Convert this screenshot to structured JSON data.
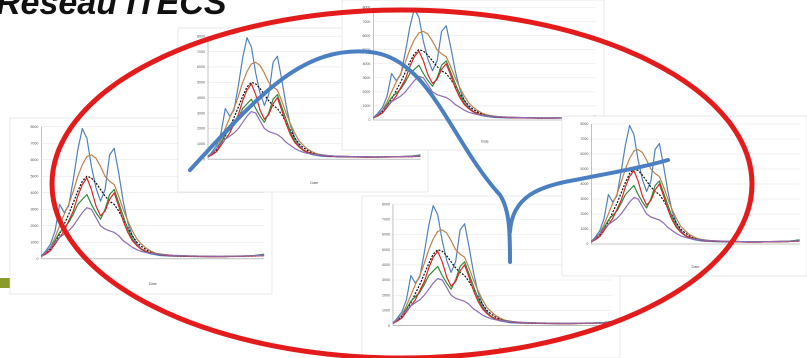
{
  "slide": {
    "heading": "Réseau ITECS",
    "colors": {
      "ellipse": "#e41b1b",
      "connector": "#4a7fc1",
      "accent_bar": "#8a9a2b"
    }
  },
  "chart_data": {
    "type": "line",
    "x": [
      1,
      2,
      3,
      4,
      5,
      6,
      7,
      8,
      9,
      10,
      11,
      12,
      13,
      14,
      15,
      16,
      17,
      18,
      19,
      20,
      21,
      22,
      23,
      24,
      25,
      26,
      27,
      28,
      29,
      30,
      31,
      32,
      33,
      34,
      35,
      36,
      37,
      38,
      39,
      40,
      41,
      42,
      43,
      44,
      45,
      46,
      47,
      48,
      49,
      50
    ],
    "xlabel": "Date",
    "ylabel": "",
    "ylim": [
      0,
      8000
    ],
    "yticks": [
      0,
      1000,
      2000,
      3000,
      4000,
      5000,
      6000,
      7000,
      8000
    ],
    "grid": true,
    "series": [
      {
        "color": "#4f81bd",
        "values": [
          150,
          500,
          900,
          1700,
          3300,
          2800,
          3200,
          4800,
          6600,
          7900,
          7300,
          5600,
          4300,
          3500,
          4200,
          6300,
          6700,
          5200,
          3500,
          2200,
          1400,
          900,
          600,
          400,
          300,
          250,
          200,
          180,
          170,
          160,
          150,
          150,
          150,
          140,
          140,
          140,
          130,
          130,
          130,
          130,
          140,
          140,
          150,
          150,
          160,
          170,
          180,
          200,
          240,
          280
        ]
      },
      {
        "color": "#c0804a",
        "values": [
          150,
          350,
          700,
          1300,
          2000,
          2700,
          3300,
          4100,
          5000,
          5700,
          6200,
          6300,
          6100,
          5600,
          5000,
          4700,
          4500,
          3800,
          3000,
          2300,
          1700,
          1200,
          900,
          650,
          480,
          360,
          300,
          260,
          230,
          210,
          200,
          190,
          180,
          170,
          170,
          160,
          160,
          160,
          150,
          150,
          150,
          160,
          160,
          170,
          170,
          180,
          190,
          200,
          210,
          230
        ]
      },
      {
        "color": "#111111",
        "dashed": true,
        "values": [
          150,
          300,
          600,
          1000,
          1500,
          2100,
          2700,
          3400,
          4100,
          4700,
          5000,
          4900,
          4600,
          4200,
          3800,
          3500,
          3300,
          2900,
          2400,
          1900,
          1400,
          1000,
          750,
          550,
          400,
          310,
          260,
          220,
          200,
          180,
          170,
          160,
          150,
          150,
          140,
          140,
          140,
          140,
          140,
          140,
          140,
          140,
          150,
          150,
          150,
          160,
          160,
          170,
          180,
          190
        ]
      },
      {
        "color": "#2e8b3a",
        "values": [
          200,
          400,
          700,
          1100,
          1600,
          1900,
          2200,
          2700,
          3300,
          3600,
          3900,
          3300,
          2800,
          2400,
          3000,
          3900,
          4200,
          3400,
          2600,
          1800,
          1200,
          800,
          560,
          430,
          360,
          320,
          290,
          250,
          220,
          200,
          190,
          180,
          170,
          160,
          150,
          150,
          140,
          140,
          140,
          140,
          140,
          150,
          150,
          160,
          160,
          170,
          180,
          200,
          230,
          260
        ]
      },
      {
        "color": "#d62728",
        "values": [
          150,
          300,
          500,
          900,
          1300,
          1700,
          2300,
          2900,
          3800,
          4500,
          4900,
          4200,
          3200,
          2600,
          2900,
          3600,
          4000,
          3200,
          2300,
          1600,
          1100,
          800,
          600,
          450,
          350,
          300,
          260,
          230,
          200,
          190,
          180,
          170,
          160,
          150,
          150,
          140,
          140,
          130,
          130,
          130,
          130,
          140,
          140,
          150,
          150,
          160,
          160,
          170,
          180,
          200
        ]
      },
      {
        "color": "#8e6bb5",
        "values": [
          150,
          400,
          700,
          1000,
          1300,
          1500,
          1700,
          2000,
          2400,
          2800,
          3100,
          3000,
          2500,
          2000,
          1800,
          1700,
          1600,
          1400,
          1100,
          900,
          700,
          550,
          450,
          380,
          330,
          300,
          270,
          250,
          230,
          210,
          200,
          190,
          180,
          170,
          170,
          160,
          160,
          160,
          150,
          150,
          150,
          150,
          160,
          160,
          170,
          170,
          180,
          190,
          200,
          220
        ]
      }
    ]
  }
}
